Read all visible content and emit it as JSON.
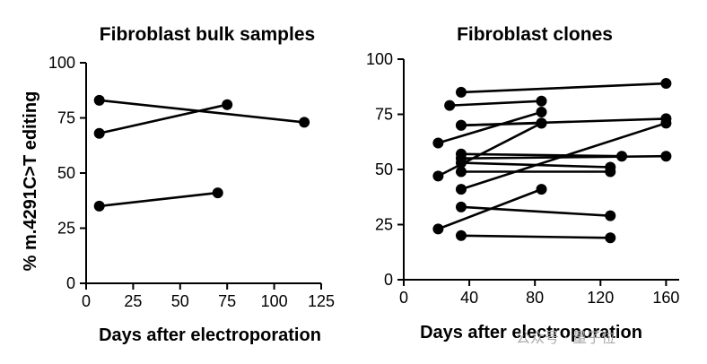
{
  "ylabel": "% m.4291C>T editing",
  "chart_data": [
    {
      "type": "line",
      "title": "Fibroblast bulk samples",
      "xlabel": "Days after electroporation",
      "xlim": [
        0,
        125
      ],
      "ylim": [
        0,
        100
      ],
      "xticks": [
        0,
        25,
        50,
        75,
        100,
        125
      ],
      "yticks": [
        0,
        25,
        50,
        75,
        100
      ],
      "series": [
        {
          "x": [
            7,
            116
          ],
          "y": [
            83,
            73
          ]
        },
        {
          "x": [
            7,
            75
          ],
          "y": [
            68,
            81
          ]
        },
        {
          "x": [
            7,
            70
          ],
          "y": [
            35,
            41
          ]
        }
      ]
    },
    {
      "type": "line",
      "title": "Fibroblast clones",
      "xlabel": "Days after electroporation",
      "xlim": [
        0,
        168
      ],
      "ylim": [
        0,
        100
      ],
      "xticks": [
        0,
        40,
        80,
        120,
        160
      ],
      "yticks": [
        0,
        25,
        50,
        75,
        100
      ],
      "series": [
        {
          "x": [
            35,
            160
          ],
          "y": [
            85,
            89
          ]
        },
        {
          "x": [
            28,
            84
          ],
          "y": [
            79,
            81
          ]
        },
        {
          "x": [
            35,
            84
          ],
          "y": [
            70,
            71
          ]
        },
        {
          "x": [
            35,
            160
          ],
          "y": [
            70,
            73
          ]
        },
        {
          "x": [
            21,
            84
          ],
          "y": [
            62,
            76
          ]
        },
        {
          "x": [
            35,
            133
          ],
          "y": [
            57,
            56
          ]
        },
        {
          "x": [
            35,
            160
          ],
          "y": [
            55,
            56
          ]
        },
        {
          "x": [
            35,
            126
          ],
          "y": [
            53,
            51
          ]
        },
        {
          "x": [
            35,
            126
          ],
          "y": [
            49,
            49
          ]
        },
        {
          "x": [
            21,
            84
          ],
          "y": [
            47,
            71
          ]
        },
        {
          "x": [
            35,
            160
          ],
          "y": [
            41,
            71
          ]
        },
        {
          "x": [
            35,
            126
          ],
          "y": [
            33,
            29
          ]
        },
        {
          "x": [
            21,
            84
          ],
          "y": [
            23,
            41
          ]
        },
        {
          "x": [
            35,
            126
          ],
          "y": [
            20,
            19
          ]
        }
      ]
    }
  ],
  "watermark": "公众号 · 量子位"
}
